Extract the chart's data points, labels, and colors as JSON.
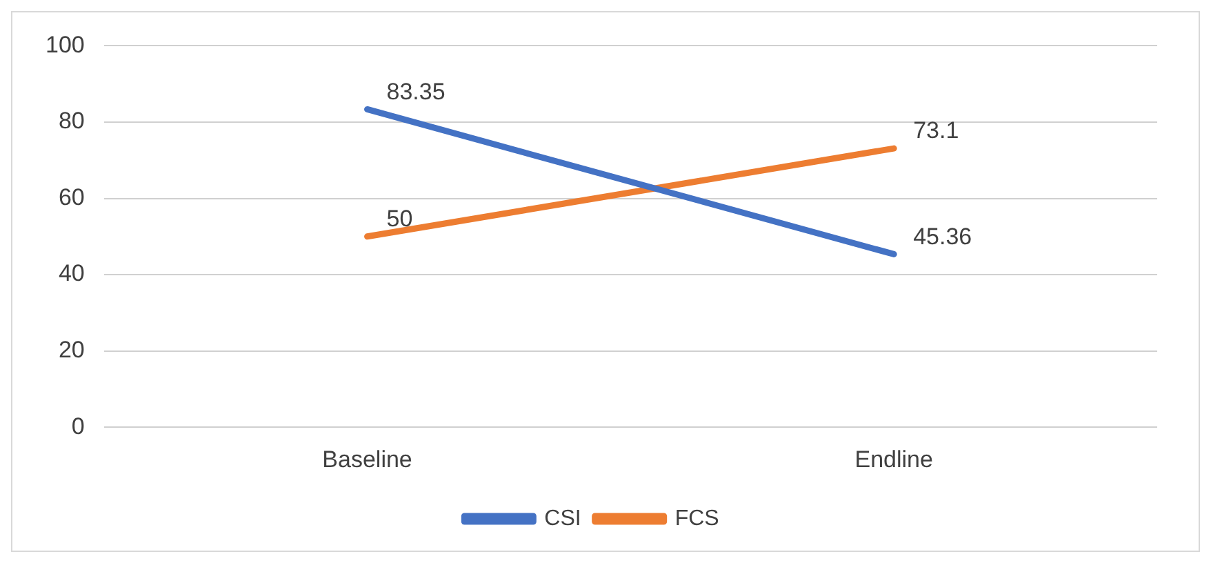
{
  "chart_data": {
    "type": "line",
    "categories": [
      "Baseline",
      "Endline"
    ],
    "series": [
      {
        "name": "CSI",
        "color": "#4472c4",
        "values": [
          83.35,
          45.36
        ]
      },
      {
        "name": "FCS",
        "color": "#ed7d31",
        "values": [
          50,
          73.1
        ]
      }
    ],
    "ylim": [
      0,
      100
    ],
    "yticks": [
      0,
      20,
      40,
      60,
      80,
      100
    ],
    "grid": "y",
    "legend": "bottom",
    "data_labels": true,
    "marker": "none",
    "line_style": "solid"
  }
}
